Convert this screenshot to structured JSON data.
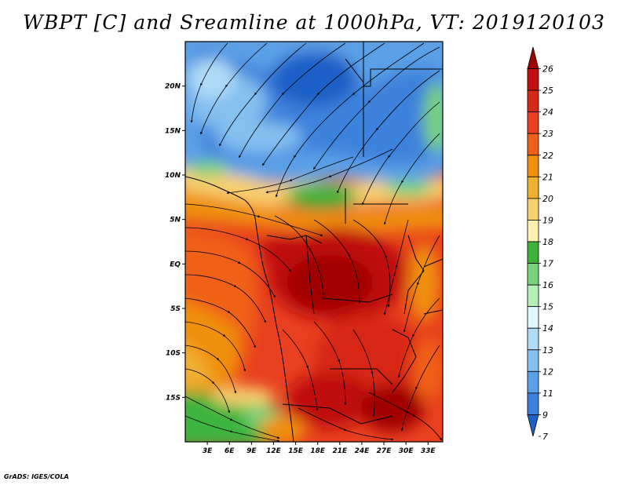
{
  "title": "WBPT [C] and Sreamline at 1000hPa, VT: 2019120103",
  "credit": "GrADS: IGES/COLA",
  "map": {
    "lat_labels": [
      "20N",
      "15N",
      "10N",
      "5N",
      "EQ",
      "5S",
      "10S",
      "15S"
    ],
    "lat_values": [
      20,
      15,
      10,
      5,
      0,
      -5,
      -10,
      -15
    ],
    "lon_labels": [
      "3E",
      "6E",
      "9E",
      "12E",
      "15E",
      "18E",
      "21E",
      "24E",
      "27E",
      "30E",
      "33E"
    ],
    "lon_values": [
      3,
      6,
      9,
      12,
      15,
      18,
      21,
      24,
      27,
      30,
      33
    ],
    "lon_range": [
      0,
      35
    ],
    "lat_range": [
      -20,
      25
    ]
  },
  "colorbar": {
    "labels": [
      "26",
      "25",
      "24",
      "23",
      "22",
      "21",
      "20",
      "19",
      "18",
      "17",
      "16",
      "15",
      "14",
      "13",
      "12",
      "11",
      "9",
      "7"
    ],
    "colors": [
      "#a00000",
      "#c01010",
      "#d82818",
      "#e84020",
      "#f06018",
      "#f09010",
      "#f0b030",
      "#f8d070",
      "#fff0b0",
      "#3cb43c",
      "#78d278",
      "#b4f0b4",
      "#e0f8ff",
      "#b0dcf8",
      "#84c0f0",
      "#5aa0e6",
      "#3c82dc",
      "#1e60c8"
    ]
  }
}
